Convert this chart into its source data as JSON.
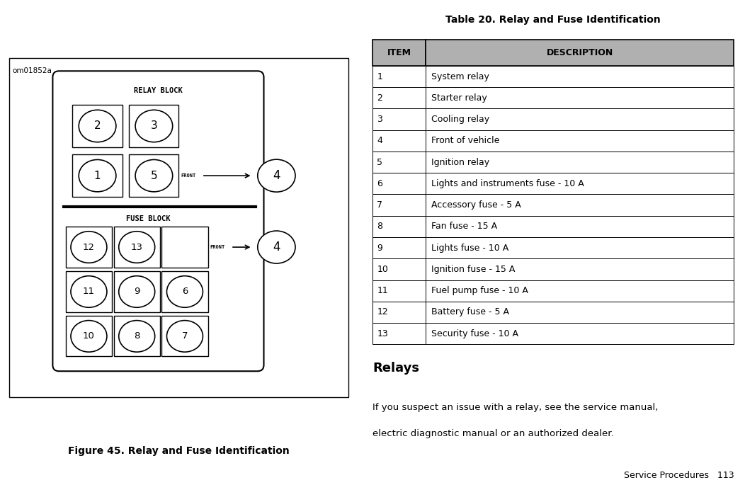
{
  "fig_width": 10.52,
  "fig_height": 6.85,
  "bg_color": "#ffffff",
  "watermark": "om01852a",
  "fig_caption": "Figure 45. Relay and Fuse Identification",
  "table_title": "Table 20. Relay and Fuse Identification",
  "table_header": [
    "ITEM",
    "DESCRIPTION"
  ],
  "table_rows": [
    [
      "1",
      "System relay"
    ],
    [
      "2",
      "Starter relay"
    ],
    [
      "3",
      "Cooling relay"
    ],
    [
      "4",
      "Front of vehicle"
    ],
    [
      "5",
      "Ignition relay"
    ],
    [
      "6",
      "Lights and instruments fuse - 10 A"
    ],
    [
      "7",
      "Accessory fuse - 5 A"
    ],
    [
      "8",
      "Fan fuse - 15 A"
    ],
    [
      "9",
      "Lights fuse - 10 A"
    ],
    [
      "10",
      "Ignition fuse - 15 A"
    ],
    [
      "11",
      "Fuel pump fuse - 10 A"
    ],
    [
      "12",
      "Battery fuse - 5 A"
    ],
    [
      "13",
      "Security fuse - 10 A"
    ]
  ],
  "relays_title": "Relays",
  "relays_line1": "If you suspect an issue with a relay, see the service manual,",
  "relays_line2": "electric diagnostic manual or an authorized dealer.",
  "footer_text": "Service Procedures   113",
  "relay_block_label": "RELAY BLOCK",
  "fuse_block_label": "FUSE BLOCK",
  "front_label": "FRONT",
  "relay_positions": [
    {
      "num": "2",
      "col": 0,
      "row": 0
    },
    {
      "num": "3",
      "col": 1,
      "row": 0
    },
    {
      "num": "1",
      "col": 0,
      "row": 1
    },
    {
      "num": "5",
      "col": 1,
      "row": 1
    }
  ],
  "fuse_positions": [
    {
      "num": "12",
      "col": 0,
      "row": 0
    },
    {
      "num": "13",
      "col": 1,
      "row": 0
    },
    {
      "num": "",
      "col": 2,
      "row": 0
    },
    {
      "num": "11",
      "col": 0,
      "row": 1
    },
    {
      "num": "9",
      "col": 1,
      "row": 1
    },
    {
      "num": "6",
      "col": 2,
      "row": 1
    },
    {
      "num": "10",
      "col": 0,
      "row": 2
    },
    {
      "num": "8",
      "col": 1,
      "row": 2
    },
    {
      "num": "7",
      "col": 2,
      "row": 2
    }
  ],
  "header_fill": "#b0b0b0",
  "table_border": "#000000"
}
